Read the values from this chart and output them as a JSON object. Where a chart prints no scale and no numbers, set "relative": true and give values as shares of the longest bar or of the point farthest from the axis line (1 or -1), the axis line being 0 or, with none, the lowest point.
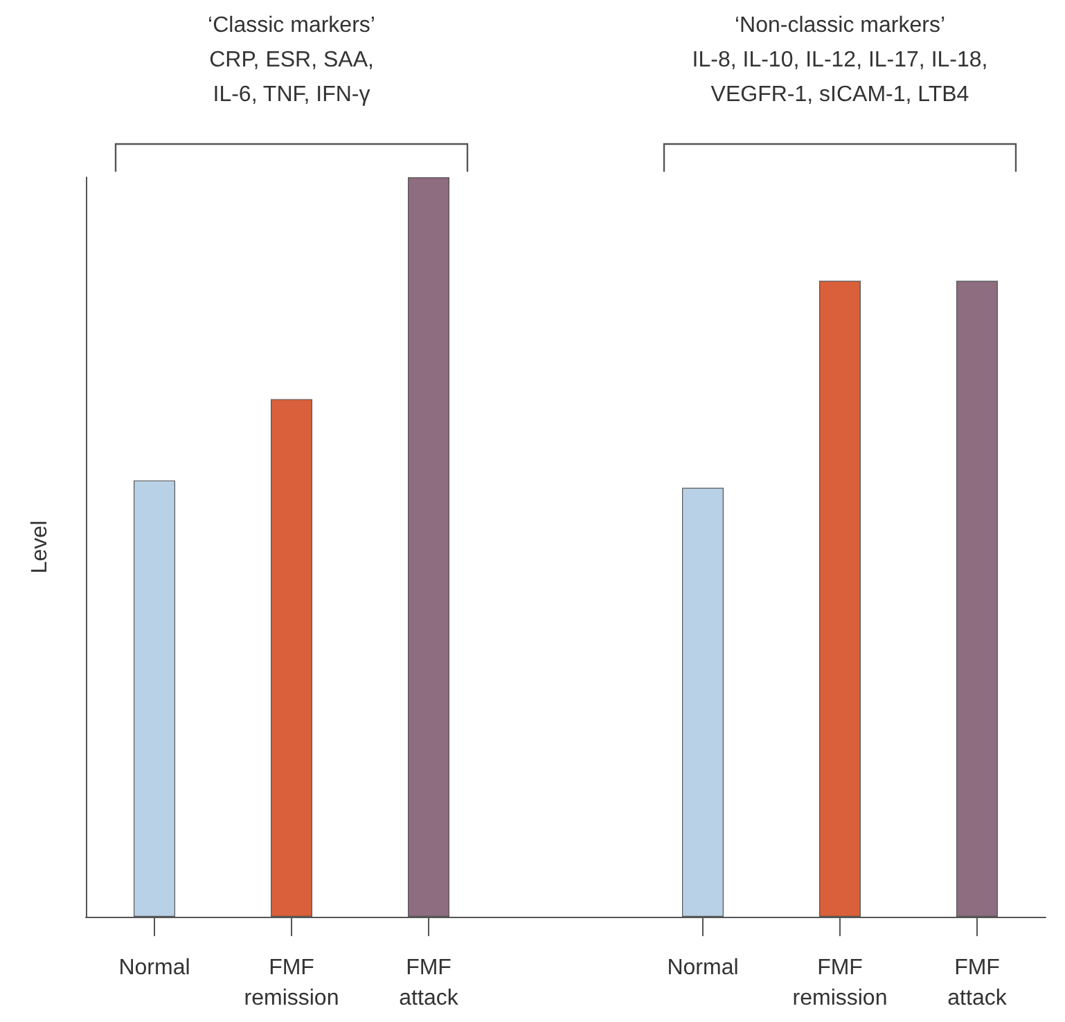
{
  "chart_data": {
    "type": "bar",
    "relative": true,
    "ylabel": "Level",
    "categories": [
      "Normal",
      "FMF\nremission",
      "FMF\nattack",
      null,
      "Normal",
      "FMF\nremission",
      "FMF\nattack"
    ],
    "values": [
      0.59,
      0.7,
      1,
      null,
      0.58,
      0.86,
      0.86
    ],
    "colors": [
      "#b9d1e6",
      "#d9603a",
      "#8e6d80",
      null,
      "#b9d1e6",
      "#d9603a",
      "#8e6d80"
    ],
    "annotations": [
      "‘Classic markers’\nCRP, ESR, SAA,\nIL-6, TNF, IFN-γ",
      "‘Non-classic markers’\nIL-8, IL-10, IL-12, IL-17, IL-18,\nVEGFR-1, sICAM-1, LTB4"
    ],
    "grid": false
  }
}
